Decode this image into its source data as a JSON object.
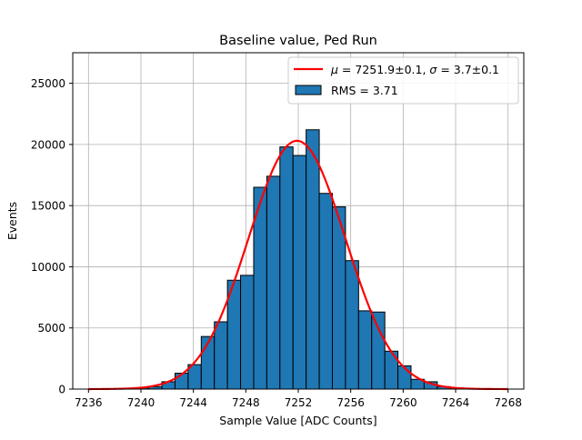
{
  "chart_data": {
    "type": "bar",
    "title": "Baseline value, Ped Run",
    "xlabel": "Sample Value [ADC Counts]",
    "ylabel": "Events",
    "xlim": [
      7234.8,
      7269.2
    ],
    "ylim": [
      0,
      27500
    ],
    "grid": true,
    "legend_placement": "top-right",
    "x_ticks": [
      7236,
      7240,
      7244,
      7248,
      7252,
      7256,
      7260,
      7264,
      7268
    ],
    "y_ticks": [
      0,
      5000,
      10000,
      15000,
      20000,
      25000
    ],
    "histogram": {
      "name": "RMS = 3.71",
      "color": "#1f77b4",
      "edgecolor": "#000000",
      "bin_width": 1.0,
      "bin_edges_start": 7239.6,
      "counts": [
        100,
        200,
        600,
        1300,
        2000,
        4300,
        5500,
        8900,
        9300,
        16500,
        17400,
        19800,
        19100,
        21200,
        16000,
        14900,
        10500,
        6400,
        6300,
        3100,
        1900,
        800,
        600,
        200,
        100
      ]
    },
    "fit": {
      "name_mu_value": "7251.9±0.1",
      "name_sigma_value": "3.7±0.1",
      "color": "#ff0000",
      "mu": 7251.9,
      "sigma": 3.7,
      "amplitude": 20300,
      "x_range": [
        7236,
        7268
      ]
    }
  }
}
